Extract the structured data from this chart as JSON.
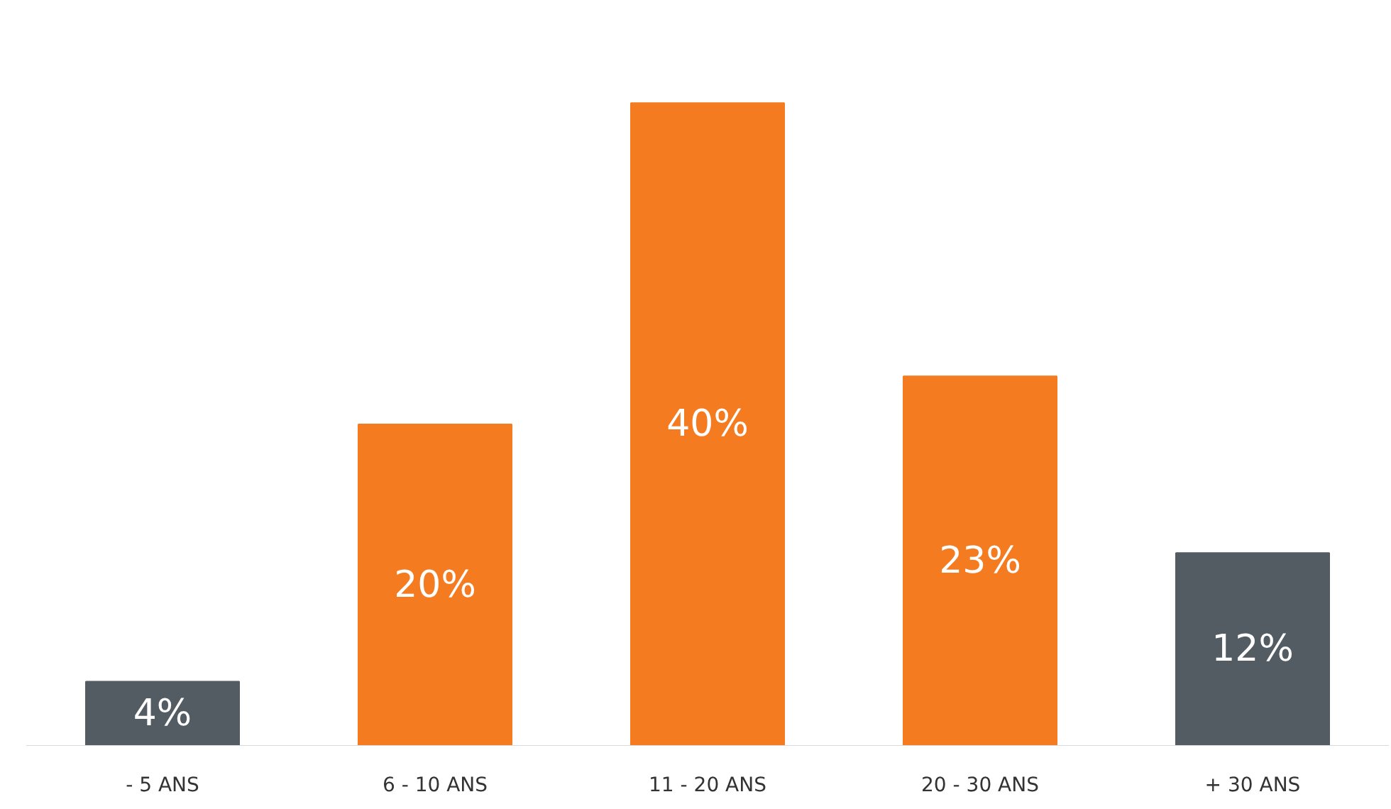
{
  "chart_data": {
    "type": "bar",
    "categories": [
      "- 5 ANS",
      "6 - 10 ANS",
      "11 - 20 ANS",
      "20 - 30 ANS",
      "+ 30 ANS"
    ],
    "values": [
      4,
      20,
      40,
      23,
      12
    ],
    "colors": [
      "#535c63",
      "#f47b20",
      "#f47b20",
      "#f47b20",
      "#535c63"
    ],
    "value_labels": [
      "4%",
      "20%",
      "40%",
      "23%",
      "12%"
    ],
    "grid": false
  }
}
